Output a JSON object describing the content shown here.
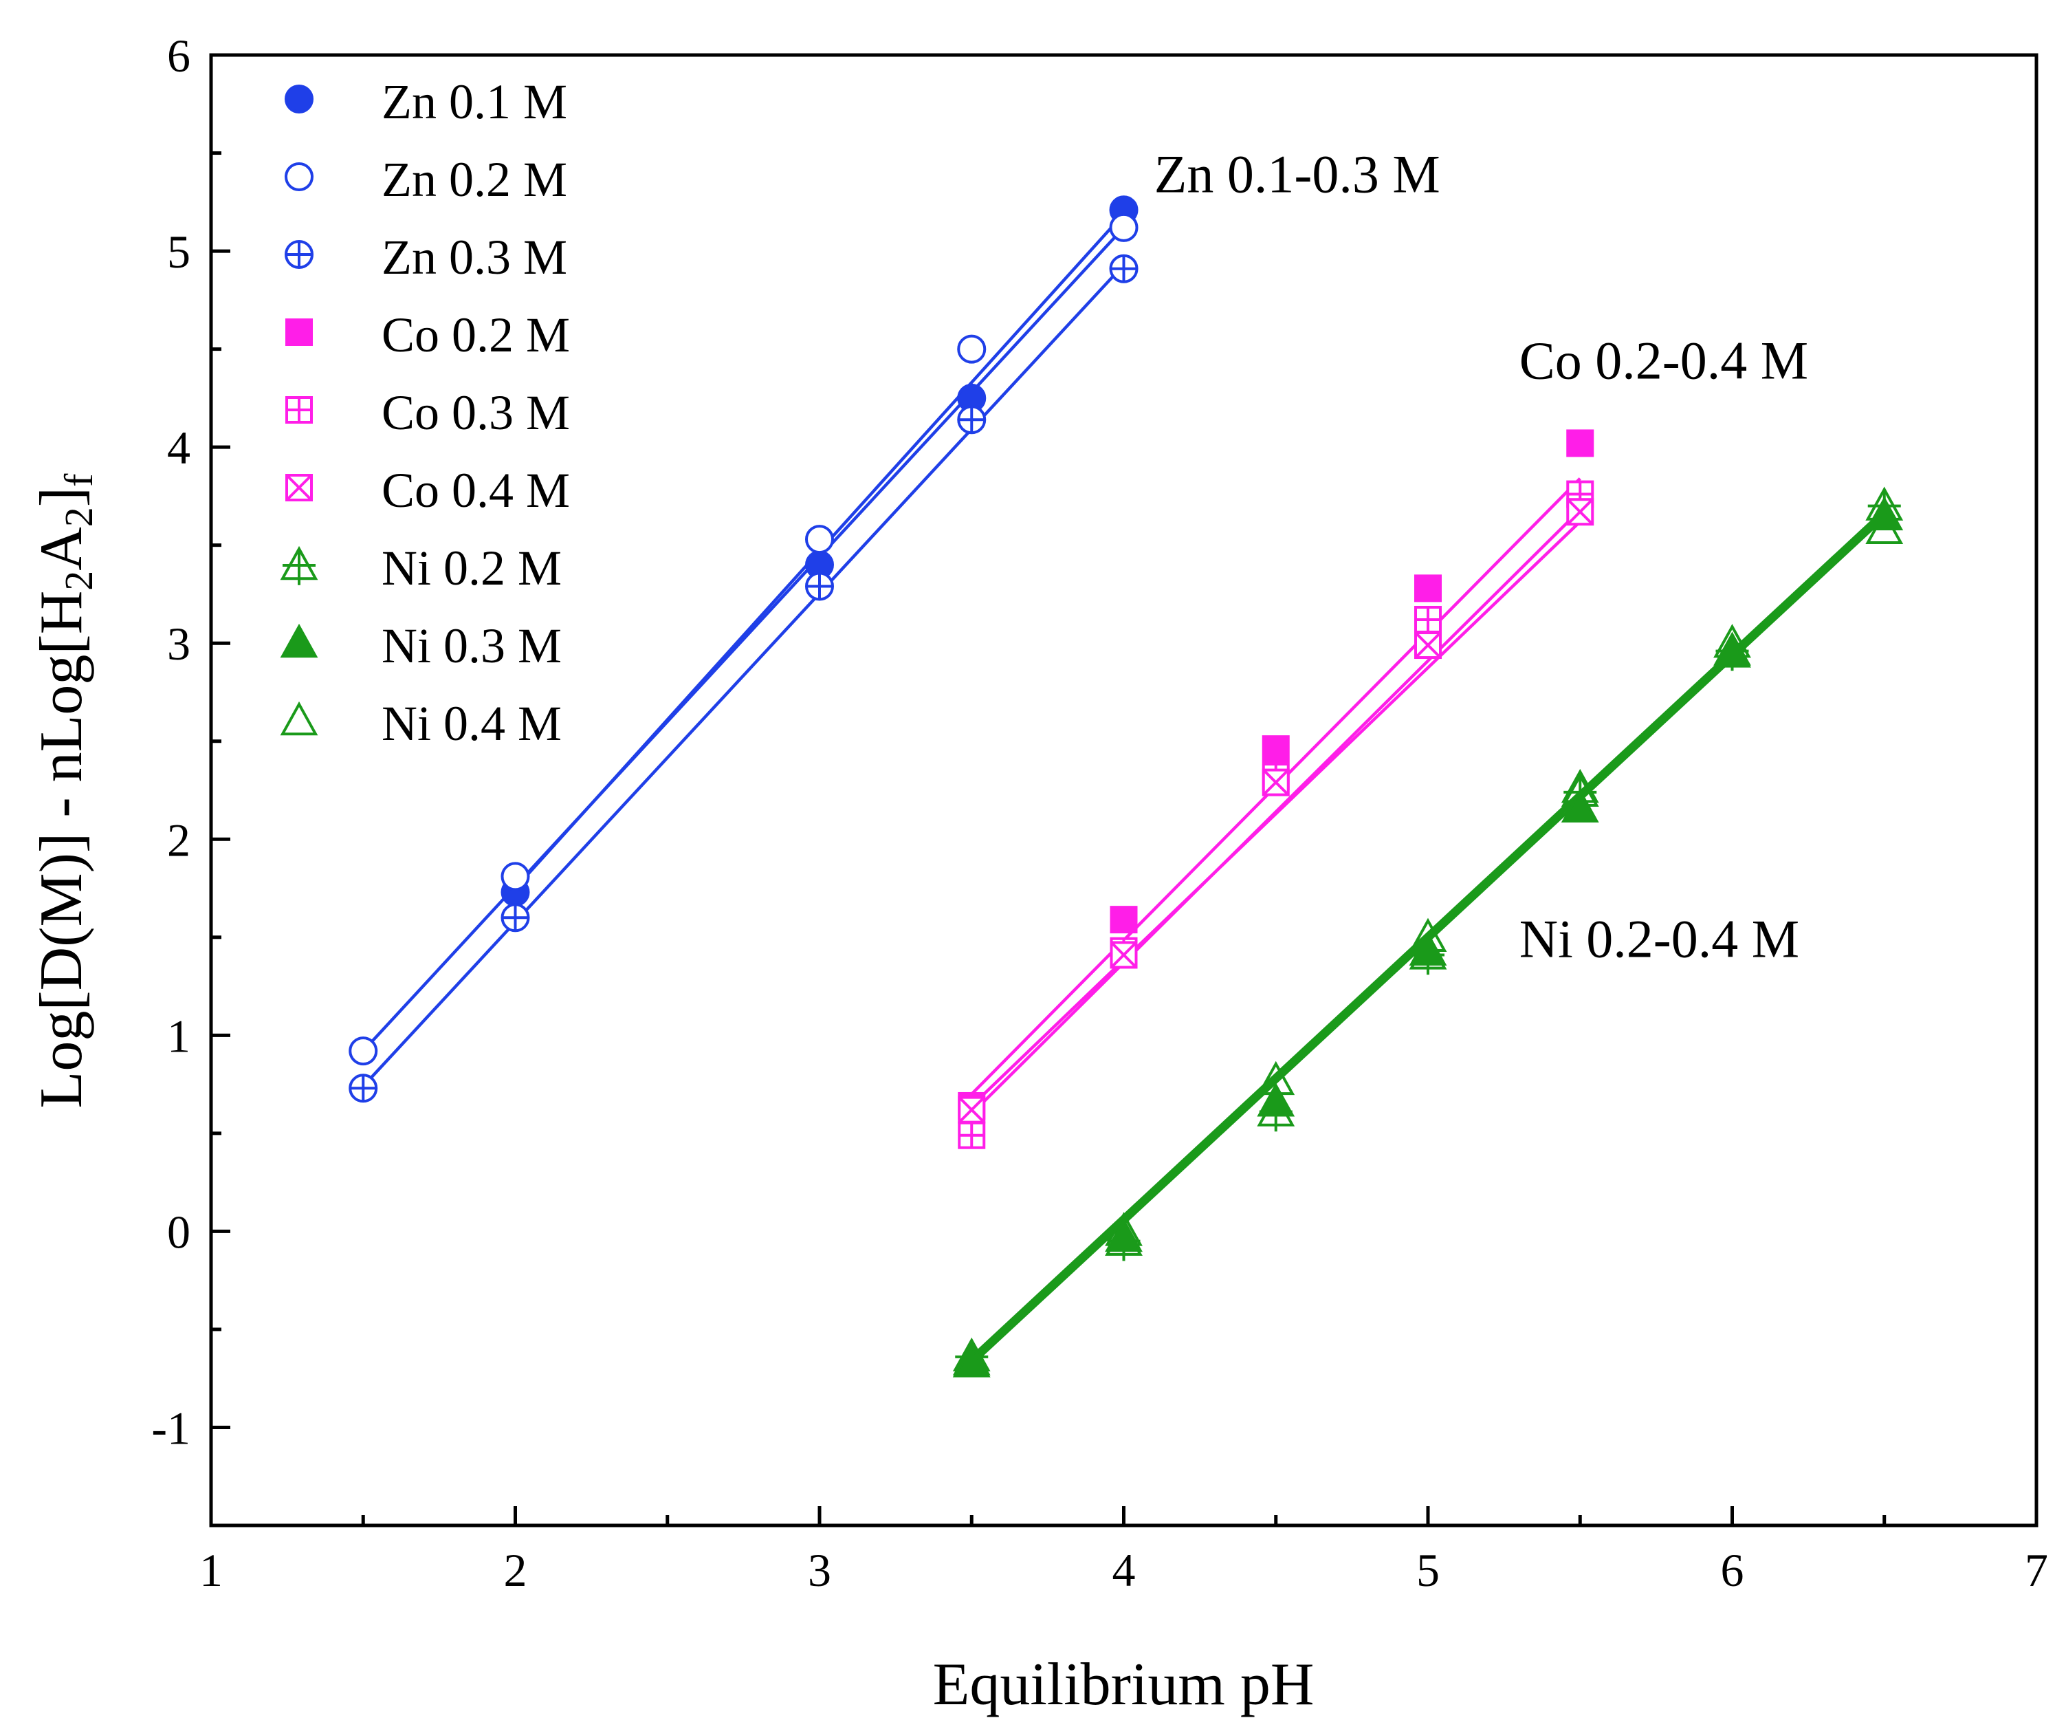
{
  "chart_data": {
    "type": "scatter",
    "title": "",
    "xlabel": "Equilibrium pH",
    "ylabel": "Log[D(M)] - nLog[H2A2]f",
    "ylabel_parts": {
      "main": "Log[D(M)] - nLog[H",
      "sub1": "2",
      "mid": "A",
      "sub2": "2",
      "end": "]",
      "sub3": "f"
    },
    "xlim": [
      1,
      7
    ],
    "ylim": [
      -1.5,
      6
    ],
    "xticks": [
      1,
      2,
      3,
      4,
      5,
      6,
      7
    ],
    "yticks": [
      -1,
      0,
      1,
      2,
      3,
      4,
      5,
      6
    ],
    "xtick_labels": [
      "1",
      "2",
      "3",
      "4",
      "5",
      "6",
      "7"
    ],
    "ytick_labels": [
      "-1",
      "0",
      "1",
      "2",
      "3",
      "4",
      "5",
      "6"
    ],
    "legend_position": "top-left",
    "annotations": [
      {
        "text": "Zn 0.1-0.3 M",
        "x": 4.1,
        "y": 5.3
      },
      {
        "text": "Co 0.2-0.4 M",
        "x": 5.3,
        "y": 4.35
      },
      {
        "text": "Ni 0.2-0.4 M",
        "x": 5.3,
        "y": 1.4
      }
    ],
    "series": [
      {
        "name": "Zn 0.1 M",
        "color": "#1f3fe8",
        "marker": "circle-filled",
        "x": [
          2,
          3,
          3.5,
          4
        ],
        "y": [
          1.73,
          3.4,
          4.25,
          5.21
        ]
      },
      {
        "name": "Zn 0.2 M",
        "color": "#1f3fe8",
        "marker": "circle-open",
        "x": [
          1.5,
          2,
          3,
          3.5,
          4
        ],
        "y": [
          0.92,
          1.81,
          3.53,
          4.5,
          5.12
        ]
      },
      {
        "name": "Zn 0.3 M",
        "color": "#1f3fe8",
        "marker": "circle-plus",
        "x": [
          1.5,
          2,
          3,
          3.5,
          4
        ],
        "y": [
          0.73,
          1.6,
          3.29,
          4.14,
          4.91
        ]
      },
      {
        "name": "Co 0.2 M",
        "color": "#ff1ee8",
        "marker": "square-filled",
        "x": [
          3.5,
          4,
          4.5,
          5,
          5.5
        ],
        "y": [
          0.64,
          1.59,
          2.46,
          3.28,
          4.02
        ]
      },
      {
        "name": "Co 0.3 M",
        "color": "#ff1ee8",
        "marker": "square-plus",
        "x": [
          3.5,
          4,
          4.5,
          5,
          5.5
        ],
        "y": [
          0.49,
          1.43,
          2.32,
          3.12,
          3.76
        ]
      },
      {
        "name": "Co 0.4 M",
        "color": "#ff1ee8",
        "marker": "square-x",
        "x": [
          3.5,
          4,
          4.5,
          5,
          5.5
        ],
        "y": [
          0.62,
          1.41,
          2.29,
          2.99,
          3.67
        ]
      },
      {
        "name": "Ni 0.2 M",
        "color": "#1a9a1a",
        "marker": "triangle-plus",
        "x": [
          3.5,
          4,
          4.5,
          5,
          5.5,
          6,
          6.5
        ],
        "y": [
          -0.64,
          -0.05,
          0.61,
          1.41,
          2.24,
          2.96,
          3.7
        ]
      },
      {
        "name": "Ni 0.3 M",
        "color": "#1a9a1a",
        "marker": "triangle-filled",
        "x": [
          3.5,
          4,
          4.5,
          5,
          5.5,
          6,
          6.5
        ],
        "y": [
          -0.67,
          -0.03,
          0.66,
          1.43,
          2.16,
          2.95,
          3.65
        ]
      },
      {
        "name": "Ni 0.4 M",
        "color": "#1a9a1a",
        "marker": "triangle-open",
        "x": [
          3.5,
          4,
          4.5,
          5,
          5.5,
          6,
          6.5
        ],
        "y": [
          -0.66,
          0.0,
          0.77,
          1.5,
          2.26,
          3.0,
          3.58
        ]
      }
    ],
    "fits": [
      {
        "color": "#1f3fe8",
        "x": [
          2,
          4
        ],
        "y": [
          1.75,
          5.19
        ]
      },
      {
        "color": "#1f3fe8",
        "x": [
          1.5,
          4
        ],
        "y": [
          0.92,
          5.12
        ]
      },
      {
        "color": "#1f3fe8",
        "x": [
          1.5,
          4
        ],
        "y": [
          0.74,
          4.93
        ]
      },
      {
        "color": "#ff1ee8",
        "x": [
          3.5,
          5.5
        ],
        "y": [
          0.7,
          3.84
        ]
      },
      {
        "color": "#ff1ee8",
        "x": [
          3.5,
          5.5
        ],
        "y": [
          0.6,
          3.68
        ]
      },
      {
        "color": "#ff1ee8",
        "x": [
          3.5,
          5.5
        ],
        "y": [
          0.64,
          3.62
        ]
      },
      {
        "color": "#1a9a1a",
        "x": [
          3.5,
          6.5
        ],
        "y": [
          -0.68,
          3.64
        ]
      },
      {
        "color": "#1a9a1a",
        "x": [
          3.5,
          6.5
        ],
        "y": [
          -0.66,
          3.66
        ]
      },
      {
        "color": "#1a9a1a",
        "x": [
          3.5,
          6.5
        ],
        "y": [
          -0.64,
          3.68
        ]
      }
    ]
  }
}
